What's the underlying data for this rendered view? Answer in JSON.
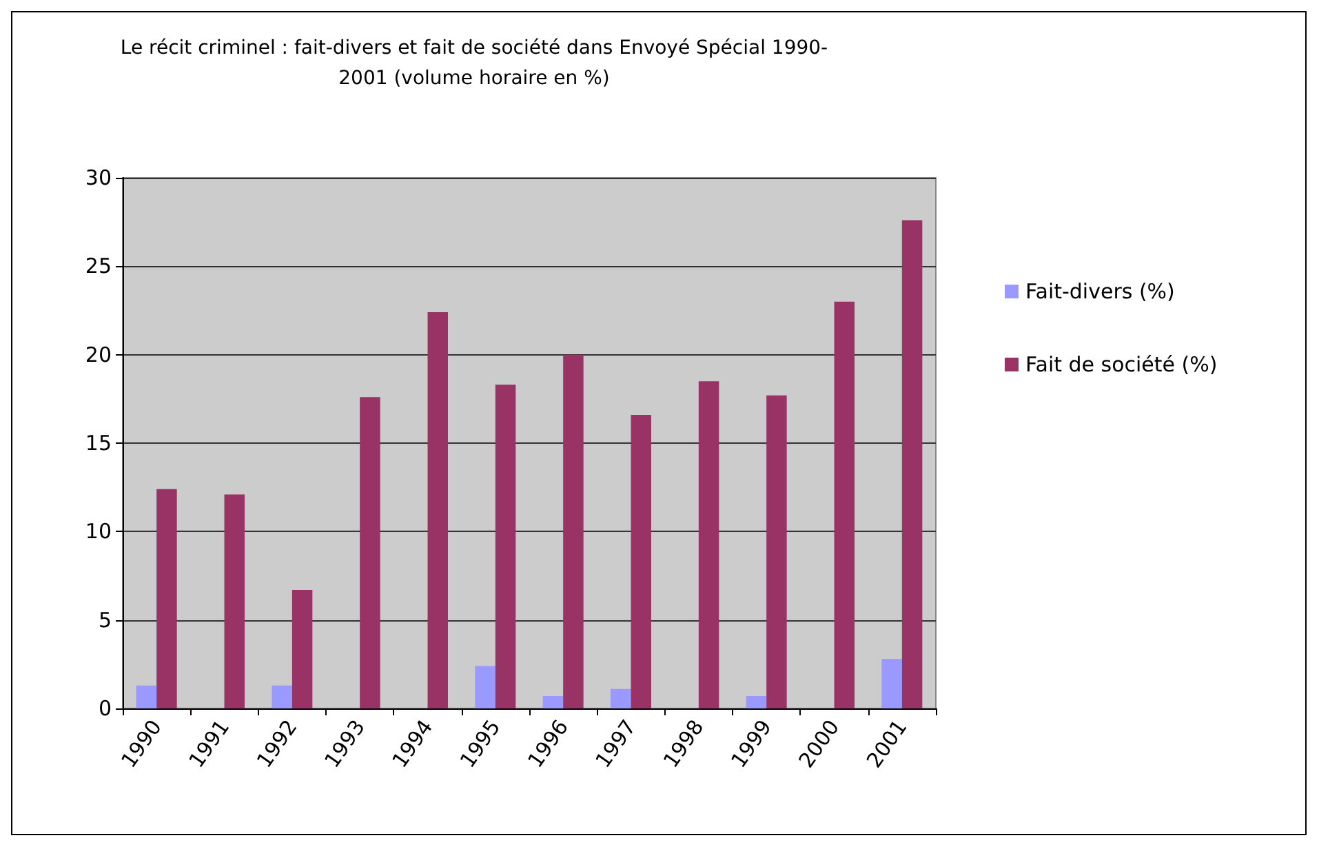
{
  "chart_data": {
    "type": "bar",
    "title": "Le récit criminel : fait-divers et fait de société dans Envoyé Spécial 1990-\n2001 (volume horaire en %)",
    "categories": [
      "1990",
      "1991",
      "1992",
      "1993",
      "1994",
      "1995",
      "1996",
      "1997",
      "1998",
      "1999",
      "2000",
      "2001"
    ],
    "series": [
      {
        "name": "Fait-divers (%)",
        "color": "#9999ff",
        "values": [
          1.3,
          0,
          1.3,
          0,
          0,
          2.4,
          0.7,
          1.1,
          0,
          0.7,
          0,
          2.8
        ]
      },
      {
        "name": "Fait de société (%)",
        "color": "#993366",
        "values": [
          12.4,
          12.1,
          6.7,
          17.6,
          22.4,
          18.3,
          20.0,
          16.6,
          18.5,
          17.7,
          23.0,
          27.6
        ]
      }
    ],
    "ylim": [
      0,
      30
    ],
    "yticks": [
      0,
      5,
      10,
      15,
      20,
      25,
      30
    ],
    "grid": "y",
    "legend": "right"
  }
}
